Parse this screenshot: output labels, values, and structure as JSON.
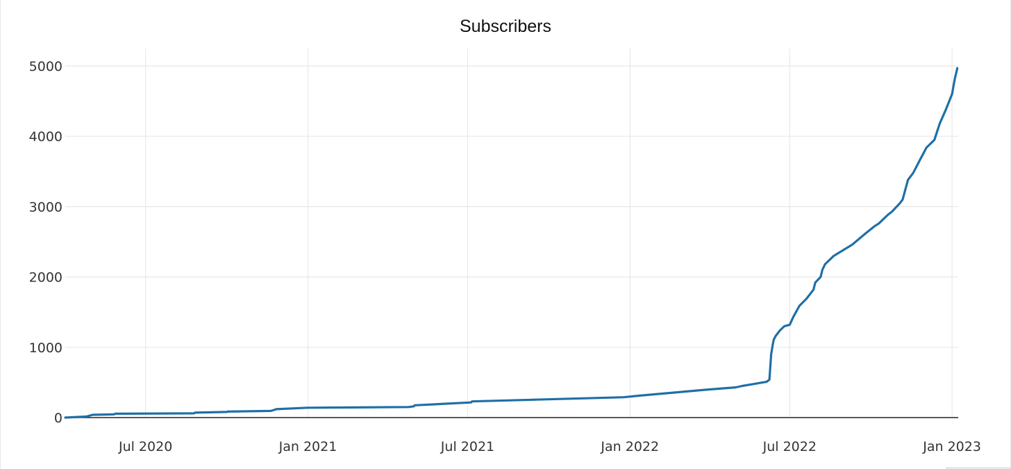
{
  "chart_data": {
    "type": "line",
    "title": "Subscribers",
    "xlabel": "",
    "ylabel": "",
    "x_tick_labels": [
      "Jul 2020",
      "Jan 2021",
      "Jul 2021",
      "Jan 2022",
      "Jul 2022",
      "Jan 2023"
    ],
    "y_tick_labels": [
      "0",
      "1000",
      "2000",
      "3000",
      "4000",
      "5000"
    ],
    "xlim": [
      "2020-04-01",
      "2023-01-08"
    ],
    "ylim": [
      0,
      5000
    ],
    "grid": true,
    "legend": "none",
    "line_color": "#1f6fa6",
    "series": [
      {
        "x": [
          "2020-04-01",
          "2020-04-25",
          "2020-05-02",
          "2020-05-26",
          "2020-05-28",
          "2020-06-05",
          "2020-08-25",
          "2020-08-26",
          "2020-10-01",
          "2020-10-02",
          "2020-11-20",
          "2020-11-24",
          "2020-11-26",
          "2021-01-01",
          "2021-04-25",
          "2021-05-01",
          "2021-05-02",
          "2021-07-05",
          "2021-07-06",
          "2021-12-25",
          "2022-01-10",
          "2022-04-01",
          "2022-05-01",
          "2022-05-08",
          "2022-05-20",
          "2022-06-05",
          "2022-06-08",
          "2022-06-10",
          "2022-06-12",
          "2022-06-13",
          "2022-06-15",
          "2022-06-20",
          "2022-06-25",
          "2022-07-01",
          "2022-07-05",
          "2022-07-12",
          "2022-07-20",
          "2022-07-28",
          "2022-07-30",
          "2022-08-05",
          "2022-08-07",
          "2022-08-10",
          "2022-08-20",
          "2022-09-10",
          "2022-09-25",
          "2022-10-05",
          "2022-10-10",
          "2022-10-20",
          "2022-10-25",
          "2022-11-03",
          "2022-11-06",
          "2022-11-12",
          "2022-11-18",
          "2022-11-25",
          "2022-12-03",
          "2022-12-12",
          "2022-12-18",
          "2022-12-25",
          "2023-01-01",
          "2023-01-04",
          "2023-01-07"
        ],
        "y": [
          0,
          15,
          40,
          45,
          55,
          55,
          60,
          70,
          80,
          85,
          95,
          110,
          120,
          140,
          150,
          160,
          175,
          215,
          230,
          290,
          310,
          400,
          430,
          450,
          475,
          510,
          540,
          900,
          1050,
          1110,
          1160,
          1240,
          1300,
          1320,
          1430,
          1590,
          1690,
          1820,
          1920,
          2000,
          2100,
          2180,
          2300,
          2460,
          2620,
          2720,
          2760,
          2880,
          2930,
          3050,
          3100,
          3380,
          3480,
          3650,
          3840,
          3950,
          4180,
          4380,
          4600,
          4810,
          4970
        ]
      }
    ]
  }
}
